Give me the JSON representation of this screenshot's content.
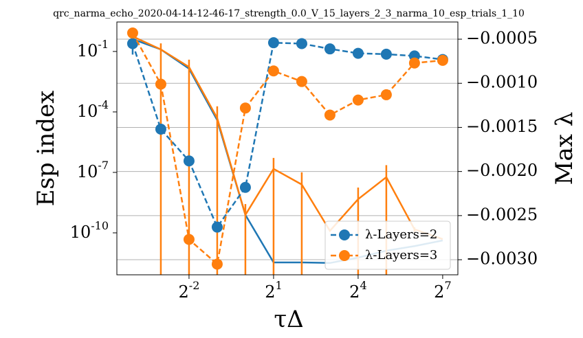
{
  "chart_data": {
    "type": "line",
    "title": "qrc_narma_echo_2020-04-14-12-46-17_strength_0.0_V_15_layers_2_3_narma_10_esp_trials_1_10",
    "xlabel": "τΔ",
    "ylabel": "Esp index",
    "y2label": "Max λ",
    "xscale": "log2",
    "yscale": "log",
    "x": [
      0.0625,
      0.125,
      0.25,
      0.5,
      1,
      2,
      4,
      8,
      16,
      32,
      64,
      128
    ],
    "xlim": [
      0.0424,
      186
    ],
    "xticks": [
      {
        "value": 0.25,
        "label": "2",
        "exponent": "-2"
      },
      {
        "value": 2,
        "label": "2",
        "exponent": "1"
      },
      {
        "value": 16,
        "label": "2",
        "exponent": "4"
      },
      {
        "value": 128,
        "label": "2",
        "exponent": "7"
      }
    ],
    "ylim": [
      8.3e-13,
      2.9
    ],
    "yticks": [
      {
        "value": 0.1,
        "label": "10",
        "exponent": "-1"
      },
      {
        "value": 0.0001,
        "label": "10",
        "exponent": "-4"
      },
      {
        "value": 1e-07,
        "label": "10",
        "exponent": "-7"
      },
      {
        "value": 1e-10,
        "label": "10",
        "exponent": "-10"
      }
    ],
    "y2lim": [
      -0.003171,
      -0.000305
    ],
    "y2ticks": [
      {
        "value": -0.0005,
        "label": "−0.0005"
      },
      {
        "value": -0.001,
        "label": "−0.0010"
      },
      {
        "value": -0.0015,
        "label": "−0.0015"
      },
      {
        "value": -0.002,
        "label": "−0.0020"
      },
      {
        "value": -0.0025,
        "label": "−0.0025"
      },
      {
        "value": -0.003,
        "label": "−0.0030"
      }
    ],
    "grid": "y2",
    "legend": "lower right",
    "series": [
      {
        "color": "#1f77b4",
        "axis": "y",
        "style": "solid",
        "values": [
          0.41,
          0.126,
          0.014,
          3.9e-05,
          7.8e-10,
          3.4e-12,
          3.4e-12,
          3.2e-12,
          5.9e-12,
          1.3e-11,
          2.2e-11,
          4.2e-11
        ],
        "errors": [
          0.34,
          0,
          0,
          0,
          0,
          0,
          0,
          0,
          0,
          0,
          0,
          0
        ]
      },
      {
        "color": "#ff7f0e",
        "axis": "y",
        "style": "solid",
        "values": [
          0.56,
          0.126,
          0.017,
          4.9e-05,
          7.8e-10,
          1.5e-07,
          2.5e-08,
          1.26e-10,
          4.7e-09,
          5.8e-08,
          1.5e-10,
          4.9e-11
        ],
        "errors": [
          0,
          0.126,
          0.022,
          0.00014,
          1.9e-09,
          3.7e-07,
          7.5e-08,
          0,
          1.3e-08,
          1.7e-07,
          4e-11,
          0
        ]
      },
      {
        "name": "λ-Layers=2",
        "color": "#1f77b4",
        "axis": "y2",
        "style": "dashed",
        "values": [
          -0.00055,
          -0.00152,
          -0.00188,
          -0.00263,
          -0.00218,
          -0.00054,
          -0.00055,
          -0.00061,
          -0.00066,
          -0.00067,
          -0.00069,
          -0.00073
        ]
      },
      {
        "name": "λ-Layers=3",
        "color": "#ff7f0e",
        "axis": "y2",
        "style": "dashed",
        "values": [
          -0.00043,
          -0.00101,
          -0.00277,
          -0.00305,
          -0.00128,
          -0.00086,
          -0.00098,
          -0.00136,
          -0.00119,
          -0.00113,
          -0.00077,
          -0.00074
        ]
      }
    ]
  }
}
